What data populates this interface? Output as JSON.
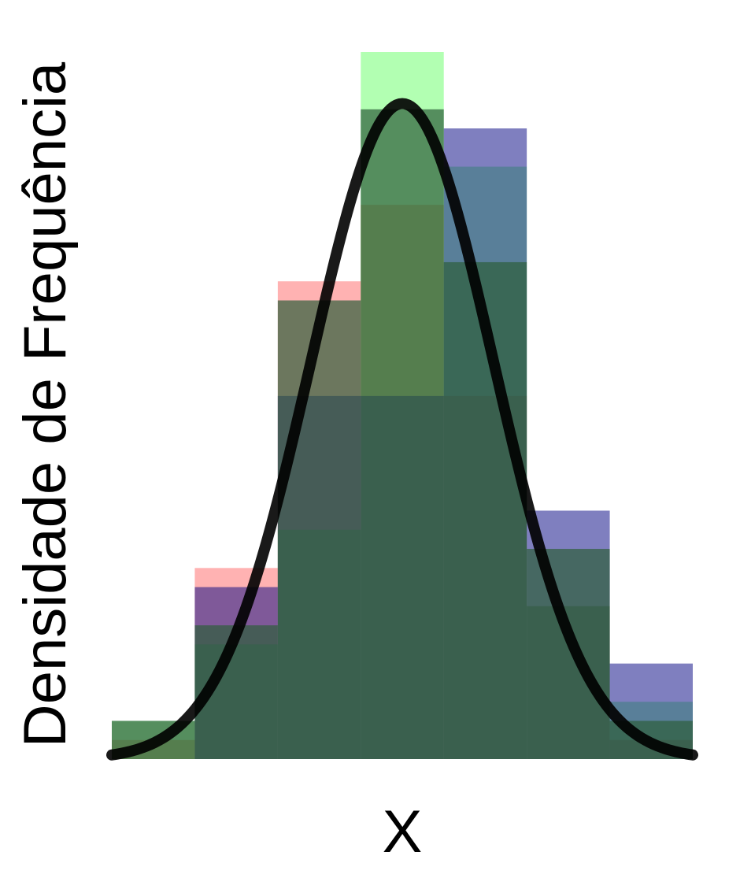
{
  "chart_data": {
    "type": "bar",
    "title": "",
    "xlabel": "X",
    "ylabel": "Densidade de Frequência",
    "ylim": [
      0,
      37
    ],
    "bins": 7,
    "grid": false,
    "legend": "none",
    "series": [
      {
        "color": "#ff0000",
        "opacity": 0.3,
        "values": [
          1,
          10,
          25,
          29,
          19,
          8,
          1
        ]
      },
      {
        "color": "#00ff00",
        "opacity": 0.3,
        "values": [
          2,
          6,
          12,
          37,
          31,
          8,
          3
        ]
      },
      {
        "color": "#000080",
        "opacity": 0.5,
        "values": [
          0,
          9,
          19,
          19,
          33,
          13,
          5
        ]
      },
      {
        "color": "#2e5e3a",
        "opacity": 0.7,
        "values": [
          2,
          7,
          24,
          34,
          26,
          11,
          2
        ]
      }
    ],
    "curve": {
      "type": "normal",
      "color": "#000000",
      "mean": 3.5,
      "sd": 1.1,
      "peak": 34.3,
      "stroke": "thick"
    }
  }
}
